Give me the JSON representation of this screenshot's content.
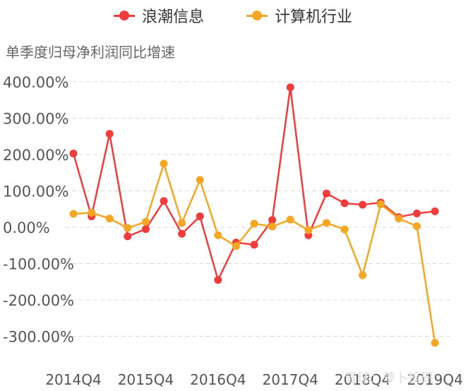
{
  "chart_data": {
    "type": "line",
    "title": "单季度归母净利润同比增速",
    "ylim": [
      -350,
      420
    ],
    "y_ticks": [
      400,
      300,
      200,
      100,
      0,
      -100,
      -200,
      -300
    ],
    "y_tick_labels": [
      "400.00%",
      "300.00%",
      "200.00%",
      "100.00%",
      "0.00%",
      "-100.00%",
      "-200.00%",
      "-300.00%"
    ],
    "x_tick_labels": [
      "2014Q4",
      "2015Q4",
      "2016Q4",
      "2017Q4",
      "2018Q4",
      "2019Q4"
    ],
    "series": [
      {
        "name": "浪潮信息",
        "color": "#f03c3c",
        "values": [
          203,
          30,
          257,
          -25,
          -5,
          72,
          -18,
          30,
          -145,
          -42,
          -48,
          20,
          385,
          -22,
          93,
          66,
          62,
          68,
          28,
          38,
          44
        ]
      },
      {
        "name": "计算机行业",
        "color": "#f5a623",
        "values": [
          37,
          40,
          24,
          -2,
          15,
          175,
          12,
          130,
          -22,
          -52,
          10,
          2,
          21,
          -8,
          12,
          -6,
          -132,
          63,
          24,
          3,
          -318
        ]
      }
    ]
  },
  "watermark": "雪球：萝卜投研"
}
